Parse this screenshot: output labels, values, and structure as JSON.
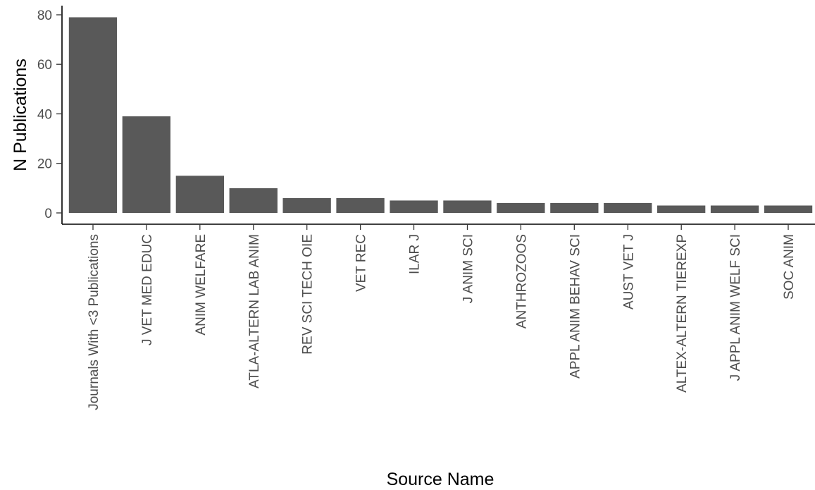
{
  "chart_data": {
    "type": "bar",
    "title": "",
    "xlabel": "Source Name",
    "ylabel": "N Publications",
    "categories": [
      "Journals With <3 Publications",
      "J VET MED EDUC",
      "ANIM WELFARE",
      "ATLA-ALTERN LAB ANIM",
      "REV SCI TECH OIE",
      "VET REC",
      "ILAR J",
      "J ANIM SCI",
      "ANTHROZOOS",
      "APPL ANIM BEHAV SCI",
      "AUST VET J",
      "ALTEX-ALTERN TIEREXP",
      "J APPL ANIM WELF SCI",
      "SOC ANIM"
    ],
    "values": [
      79,
      39,
      15,
      10,
      6,
      6,
      5,
      5,
      4,
      4,
      4,
      3,
      3,
      3
    ],
    "ylim": [
      0,
      82
    ],
    "yticks": [
      0,
      20,
      40,
      60,
      80
    ],
    "grid": false,
    "legend": "none",
    "bar_color": "#595959"
  }
}
